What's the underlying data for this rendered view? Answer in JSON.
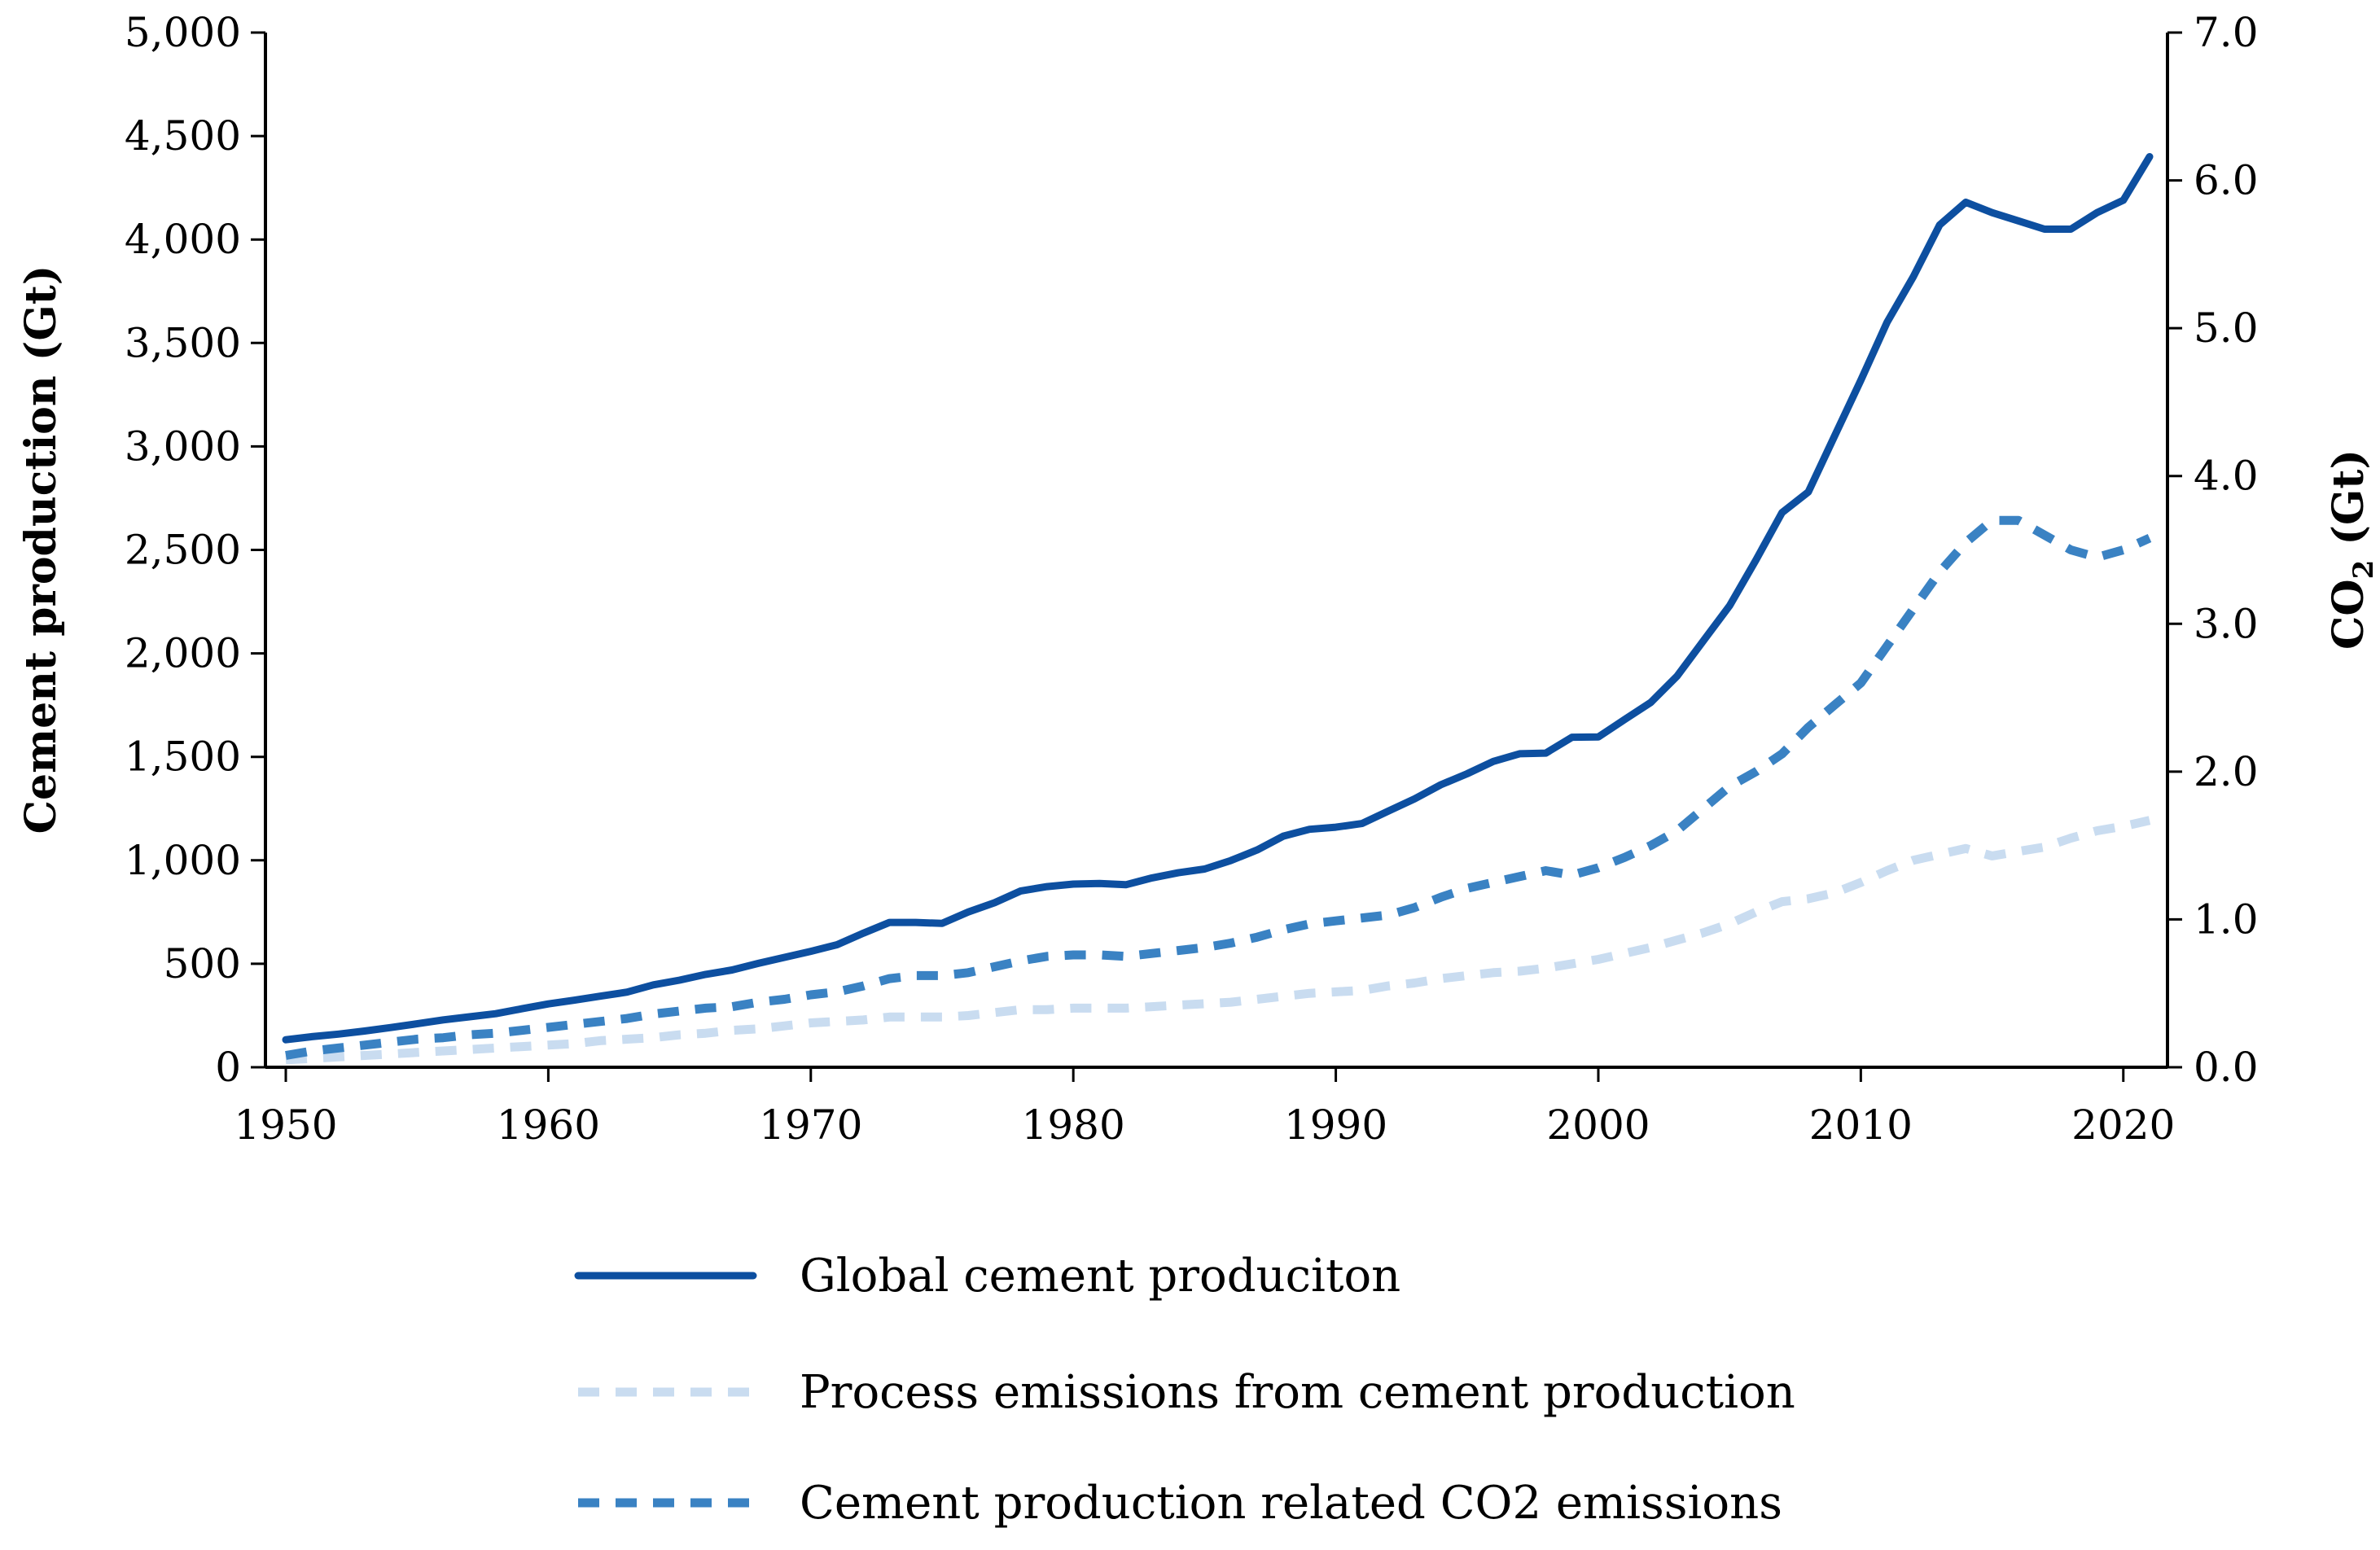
{
  "chart_data": {
    "type": "line",
    "title": "",
    "xlabel": "",
    "ylabel": "Cement production (Gt)",
    "y2label": {
      "prefix": "CO",
      "subscript": "2",
      "suffix": " (Gt)"
    },
    "xlim": [
      1950,
      2021
    ],
    "ylim": [
      0,
      5000
    ],
    "y2lim": [
      0,
      7
    ],
    "x_ticks": [
      1950,
      1960,
      1970,
      1980,
      1990,
      2000,
      2010,
      2020
    ],
    "x_tick_labels": [
      "1950",
      "1960",
      "1970",
      "1980",
      "1990",
      "2000",
      "2010",
      "2020"
    ],
    "y_ticks": [
      0,
      500,
      1000,
      1500,
      2000,
      2500,
      3000,
      3500,
      4000,
      4500,
      5000
    ],
    "y_tick_labels": [
      "0",
      "500",
      "1,000",
      "1,500",
      "2,000",
      "2,500",
      "3,000",
      "3,500",
      "4,000",
      "4,500",
      "5,000"
    ],
    "y2_ticks": [
      0,
      1,
      2,
      3,
      4,
      5,
      6,
      7
    ],
    "y2_tick_labels": [
      "0.0",
      "1.0",
      "2.0",
      "3.0",
      "4.0",
      "5.0",
      "6.0",
      "7.0"
    ],
    "grid": false,
    "legend_position": "bottom",
    "x": [
      1950,
      1951,
      1952,
      1953,
      1954,
      1955,
      1956,
      1957,
      1958,
      1959,
      1960,
      1961,
      1962,
      1963,
      1964,
      1965,
      1966,
      1967,
      1968,
      1969,
      1970,
      1971,
      1972,
      1973,
      1974,
      1975,
      1976,
      1977,
      1978,
      1979,
      1980,
      1981,
      1982,
      1983,
      1984,
      1985,
      1986,
      1987,
      1988,
      1989,
      1990,
      1991,
      1992,
      1993,
      1994,
      1995,
      1996,
      1997,
      1998,
      1999,
      2000,
      2001,
      2002,
      2003,
      2004,
      2005,
      2006,
      2007,
      2008,
      2009,
      2010,
      2011,
      2012,
      2013,
      2014,
      2015,
      2016,
      2017,
      2018,
      2019,
      2020,
      2021
    ],
    "series": [
      {
        "name": "Global cement produciton",
        "axis": "left",
        "color": "#0d4fa0",
        "style": "solid",
        "values": [
          133,
          148,
          160,
          175,
          192,
          210,
          229,
          244,
          259,
          283,
          306,
          324,
          344,
          363,
          398,
          421,
          449,
          470,
          502,
          531,
          560,
          592,
          648,
          700,
          700,
          695,
          750,
          795,
          852,
          873,
          885,
          888,
          882,
          915,
          940,
          958,
          999,
          1050,
          1117,
          1150,
          1160,
          1178,
          1238,
          1297,
          1365,
          1418,
          1478,
          1515,
          1518,
          1595,
          1596,
          1680,
          1763,
          1890,
          2060,
          2230,
          2450,
          2680,
          2780,
          3050,
          3320,
          3600,
          3820,
          4070,
          4180,
          4130,
          4090,
          4050,
          4050,
          4130,
          4190,
          4400
        ]
      },
      {
        "name": "Process emissions from cement production",
        "axis": "right",
        "color": "#c9dcf0",
        "style": "dashed",
        "values": [
          0.05,
          0.06,
          0.07,
          0.08,
          0.09,
          0.1,
          0.11,
          0.12,
          0.13,
          0.14,
          0.15,
          0.16,
          0.18,
          0.19,
          0.2,
          0.22,
          0.23,
          0.25,
          0.26,
          0.28,
          0.3,
          0.31,
          0.32,
          0.34,
          0.34,
          0.34,
          0.35,
          0.37,
          0.39,
          0.39,
          0.4,
          0.4,
          0.4,
          0.41,
          0.42,
          0.43,
          0.44,
          0.46,
          0.48,
          0.5,
          0.51,
          0.52,
          0.55,
          0.57,
          0.6,
          0.62,
          0.64,
          0.65,
          0.67,
          0.7,
          0.73,
          0.77,
          0.81,
          0.86,
          0.91,
          0.97,
          1.05,
          1.12,
          1.14,
          1.18,
          1.25,
          1.33,
          1.4,
          1.44,
          1.48,
          1.43,
          1.46,
          1.49,
          1.55,
          1.6,
          1.63,
          1.67
        ]
      },
      {
        "name": "Cement production related CO2 emissions",
        "axis": "right",
        "color": "#3a82c3",
        "style": "dashed",
        "values": [
          0.08,
          0.11,
          0.13,
          0.15,
          0.17,
          0.19,
          0.2,
          0.22,
          0.23,
          0.25,
          0.27,
          0.29,
          0.31,
          0.33,
          0.36,
          0.38,
          0.4,
          0.41,
          0.44,
          0.46,
          0.49,
          0.51,
          0.55,
          0.6,
          0.62,
          0.62,
          0.64,
          0.68,
          0.72,
          0.75,
          0.76,
          0.76,
          0.75,
          0.77,
          0.79,
          0.81,
          0.84,
          0.88,
          0.93,
          0.97,
          0.99,
          1.01,
          1.03,
          1.08,
          1.15,
          1.21,
          1.25,
          1.29,
          1.33,
          1.3,
          1.35,
          1.42,
          1.5,
          1.6,
          1.75,
          1.9,
          2.0,
          2.12,
          2.3,
          2.45,
          2.6,
          2.85,
          3.1,
          3.35,
          3.55,
          3.7,
          3.7,
          3.6,
          3.5,
          3.45,
          3.5,
          3.58
        ]
      }
    ]
  }
}
